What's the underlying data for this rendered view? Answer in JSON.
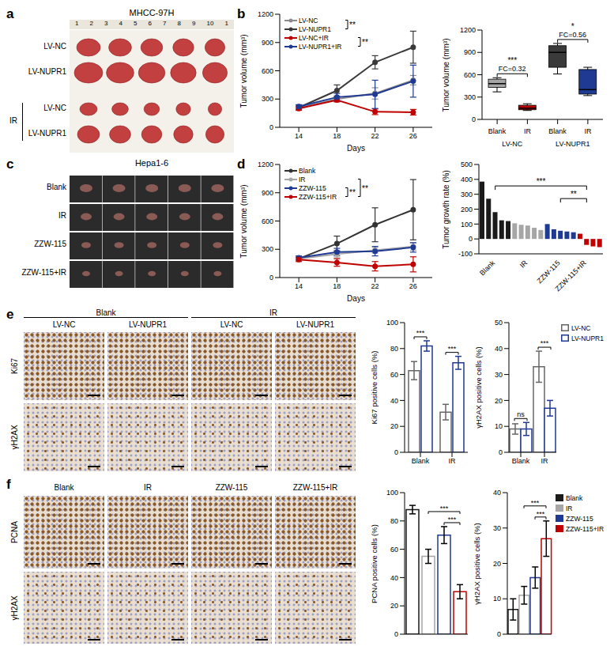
{
  "figure": {
    "letters": [
      "a",
      "b",
      "c",
      "d",
      "e",
      "f"
    ],
    "a": {
      "title": "MHCC-97H",
      "ruler": [
        "1",
        "2",
        "3",
        "4",
        "5",
        "6",
        "7",
        "8",
        "9",
        "10",
        "1"
      ],
      "rows": [
        "LV-NC",
        "LV-NUPR1",
        "LV-NC",
        "LV-NUPR1"
      ],
      "treatment": "IR"
    },
    "c": {
      "title": "Hepa1-6",
      "rows": [
        "Blank",
        "IR",
        "ZZW-115",
        "ZZW-115+IR"
      ]
    },
    "e": {
      "groups": [
        "Blank",
        "IR"
      ],
      "columns": [
        "LV-NC",
        "LV-NUPR1",
        "LV-NC",
        "LV-NUPR1"
      ],
      "rows": [
        "Ki67",
        "γH2AX"
      ]
    },
    "f": {
      "columns": [
        "Blank",
        "IR",
        "ZZW-115",
        "ZZW-115+IR"
      ],
      "rows": [
        "PCNA",
        "γH2AX"
      ]
    }
  },
  "chart_data": [
    {
      "type": "line",
      "marker": "circle",
      "x": [
        14,
        18,
        22,
        26
      ],
      "xlim": [
        12,
        28
      ],
      "xticks": [
        14,
        18,
        22,
        26
      ],
      "x_label": "Days",
      "y_label": "Tumor volume (mm³)",
      "ylim": [
        0,
        1200
      ],
      "yticks": [
        0,
        300,
        600,
        900,
        1200
      ],
      "series": [
        {
          "name": "LV-NC",
          "color": "#8c8c8c",
          "values": [
            205,
            300,
            360,
            500
          ],
          "errors": [
            20,
            25,
            60,
            50
          ]
        },
        {
          "name": "LV-NUPR1",
          "color": "#3a3a3a",
          "values": [
            210,
            390,
            690,
            850
          ],
          "errors": [
            25,
            60,
            70,
            170
          ]
        },
        {
          "name": "LV-NC+IR",
          "color": "#c00000",
          "values": [
            200,
            290,
            165,
            160
          ],
          "errors": [
            20,
            20,
            30,
            30
          ]
        },
        {
          "name": "LV-NUPR1+IR",
          "color": "#1f3a93",
          "values": [
            220,
            320,
            350,
            490
          ],
          "errors": [
            20,
            40,
            150,
            170
          ]
        }
      ],
      "annotations": [
        {
          "text": "**",
          "between": [
            "LV-NC",
            "LV-NUPR1"
          ]
        },
        {
          "text": "**",
          "between": [
            "LV-NC+IR",
            "LV-NUPR1+IR"
          ]
        }
      ]
    },
    {
      "type": "box",
      "categories": [
        "Blank",
        "IR",
        "Blank",
        "IR"
      ],
      "group_labels": [
        "LV-NC",
        "LV-NUPR1"
      ],
      "y_label": "Tumor volume (mm³)",
      "ylim": [
        0,
        1200
      ],
      "yticks": [
        0,
        300,
        600,
        900,
        1200
      ],
      "boxes": [
        {
          "color": "#a6a6a6",
          "min": 370,
          "q1": 430,
          "median": 480,
          "q3": 540,
          "max": 560
        },
        {
          "color": "#c00000",
          "min": 120,
          "q1": 130,
          "median": 150,
          "q3": 190,
          "max": 210
        },
        {
          "color": "#3a3a3a",
          "min": 610,
          "q1": 700,
          "median": 900,
          "q3": 990,
          "max": 1020
        },
        {
          "color": "#1f3a93",
          "min": 320,
          "q1": 340,
          "median": 400,
          "q3": 670,
          "max": 700
        }
      ],
      "annotations": [
        {
          "group": "LV-NC",
          "text": "***",
          "label": "FC=0.32"
        },
        {
          "group": "LV-NUPR1",
          "text": "*",
          "label": "FC=0.56"
        }
      ]
    },
    {
      "type": "line",
      "marker": "circle",
      "x": [
        14,
        18,
        22,
        26
      ],
      "xlim": [
        12,
        28
      ],
      "xticks": [
        14,
        18,
        22,
        26
      ],
      "x_label": "Days",
      "y_label": "Tumor volume (mm³)",
      "ylim": [
        0,
        1200
      ],
      "yticks": [
        0,
        300,
        600,
        900,
        1200
      ],
      "series": [
        {
          "name": "Blank",
          "color": "#333333",
          "values": [
            200,
            360,
            560,
            720
          ],
          "errors": [
            20,
            80,
            180,
            320
          ]
        },
        {
          "name": "IR",
          "color": "#a6a6a6",
          "values": [
            200,
            250,
            290,
            330
          ],
          "errors": [
            20,
            40,
            30,
            40
          ]
        },
        {
          "name": "ZZW-115",
          "color": "#1f3a93",
          "values": [
            210,
            270,
            280,
            320
          ],
          "errors": [
            20,
            40,
            50,
            50
          ]
        },
        {
          "name": "ZZW-115+IR",
          "color": "#c00000",
          "values": [
            190,
            160,
            120,
            140
          ],
          "errors": [
            20,
            40,
            50,
            80
          ]
        }
      ],
      "annotations": [
        {
          "text": "**",
          "between": [
            "ZZW-115",
            "ZZW-115+IR"
          ]
        },
        {
          "text": "**",
          "between": [
            "IR",
            "ZZW-115+IR"
          ]
        }
      ]
    },
    {
      "type": "bar",
      "y_label": "Tumor growth rate (%)",
      "ylim": [
        -100,
        500
      ],
      "yticks": [
        -100,
        0,
        100,
        200,
        300,
        400,
        500
      ],
      "categories": [
        null,
        null,
        "Blank",
        null,
        null,
        null,
        null,
        "IR",
        null,
        null,
        null,
        null,
        "ZZW-115",
        null,
        null,
        null,
        "ZZW-115+IR",
        null,
        null
      ],
      "values": [
        385,
        270,
        180,
        125,
        120,
        105,
        95,
        90,
        75,
        60,
        100,
        65,
        55,
        50,
        45,
        35,
        -40,
        -50,
        -55
      ],
      "colors": [
        "#1a1a1a",
        "#1a1a1a",
        "#1a1a1a",
        "#1a1a1a",
        "#1a1a1a",
        "#a6a6a6",
        "#a6a6a6",
        "#a6a6a6",
        "#a6a6a6",
        "#a6a6a6",
        "#1f3a93",
        "#1f3a93",
        "#1f3a93",
        "#1f3a93",
        "#1f3a93",
        "#c00000",
        "#c00000",
        "#c00000",
        "#c00000"
      ],
      "annotations": [
        {
          "text": "***",
          "between": [
            "Blank",
            "ZZW-115+IR"
          ]
        },
        {
          "text": "**",
          "between": [
            "ZZW-115",
            "ZZW-115+IR"
          ]
        }
      ]
    },
    {
      "type": "bar",
      "categories": [
        "Blank",
        "IR"
      ],
      "y_label": "Ki67 positive cells (%)",
      "ylim": [
        0,
        100
      ],
      "yticks": [
        0,
        20,
        40,
        60,
        80,
        100
      ],
      "series": [
        {
          "name": "LV-NC",
          "color": "#666666",
          "values": [
            63,
            31
          ],
          "errors": [
            7,
            6
          ]
        },
        {
          "name": "LV-NUPR1",
          "color": "#1f3a93",
          "values": [
            82,
            69
          ],
          "errors": [
            4,
            5
          ]
        }
      ],
      "annotations": [
        {
          "category": "Blank",
          "text": "***"
        },
        {
          "category": "IR",
          "text": "***"
        }
      ]
    },
    {
      "type": "bar",
      "categories": [
        "Blank",
        "IR"
      ],
      "y_label": "γH2AX positive cells (%)",
      "ylim": [
        0,
        50
      ],
      "yticks": [
        0,
        10,
        20,
        30,
        40,
        50
      ],
      "legend": "right",
      "series": [
        {
          "name": "LV-NC",
          "color": "#666666",
          "values": [
            9,
            33
          ],
          "errors": [
            2,
            6
          ]
        },
        {
          "name": "LV-NUPR1",
          "color": "#1f3a93",
          "values": [
            9,
            17
          ],
          "errors": [
            2.5,
            3
          ]
        }
      ],
      "annotations": [
        {
          "category": "Blank",
          "text": "ns"
        },
        {
          "category": "IR",
          "text": "***"
        }
      ]
    },
    {
      "type": "bar",
      "tick_labels": "y",
      "categories": [
        "Blank",
        "IR",
        "ZZW-115",
        "ZZW-115+IR"
      ],
      "y_label": "PCNA positive cells (%)",
      "ylim": [
        0,
        100
      ],
      "yticks": [
        0,
        20,
        40,
        60,
        80,
        100
      ],
      "values": [
        88,
        55,
        70,
        30
      ],
      "errors": [
        3,
        5,
        6,
        5
      ],
      "colors": [
        "#1a1a1a",
        "#a6a6a6",
        "#1f3a93",
        "#c00000"
      ],
      "annotations": [
        {
          "text": "***",
          "between": [
            "IR",
            "ZZW-115+IR"
          ]
        },
        {
          "text": "***",
          "between": [
            "ZZW-115",
            "ZZW-115+IR"
          ]
        }
      ]
    },
    {
      "type": "bar",
      "tick_labels": "y",
      "categories": [
        "Blank",
        "IR",
        "ZZW-115",
        "ZZW-115+IR"
      ],
      "y_label": "γH2AX positive cells (%)",
      "ylim": [
        0,
        40
      ],
      "yticks": [
        0,
        10,
        20,
        30,
        40
      ],
      "legend": "right",
      "values": [
        7,
        11,
        16,
        27
      ],
      "errors": [
        3,
        2.5,
        3,
        5
      ],
      "colors": [
        "#1a1a1a",
        "#a6a6a6",
        "#1f3a93",
        "#c00000"
      ],
      "annotations": [
        {
          "text": "***",
          "between": [
            "IR",
            "ZZW-115+IR"
          ]
        },
        {
          "text": "***",
          "between": [
            "ZZW-115",
            "ZZW-115+IR"
          ]
        }
      ]
    }
  ]
}
